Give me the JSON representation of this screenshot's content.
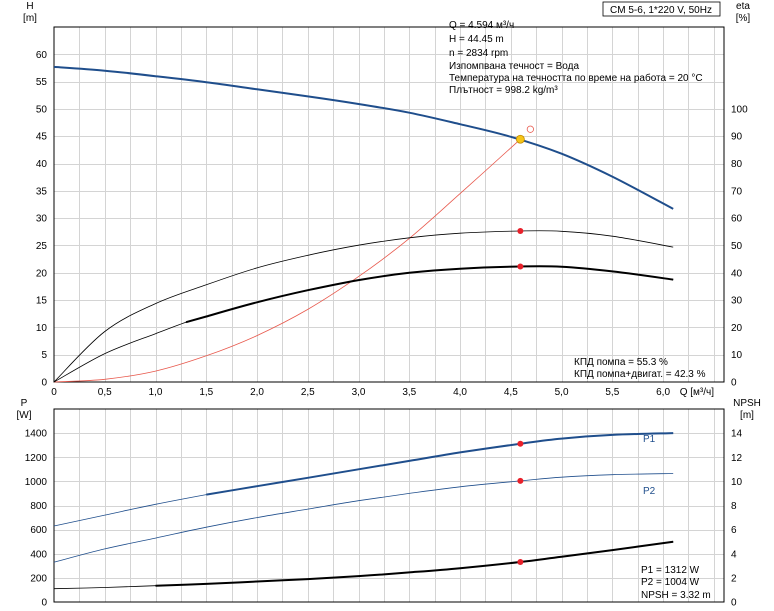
{
  "chart_data": [
    {
      "type": "line",
      "title": "CM 5-6, 1*220 V, 50Hz",
      "xlabel": "Q [м³/ч]",
      "ylabel_left": "H [m]",
      "ylabel_left_parts": [
        "H",
        "[m]"
      ],
      "ylabel_right": "eta [%]",
      "ylabel_right_parts": [
        "eta",
        "[%]"
      ],
      "xlim": [
        0,
        6.6
      ],
      "ylim_left": [
        0,
        65
      ],
      "ylim_right": [
        0,
        130
      ],
      "x_ticks": [
        "0",
        "0,5",
        "1,0",
        "1,5",
        "2,0",
        "2,5",
        "3,0",
        "3,5",
        "4,0",
        "4,5",
        "5,0",
        "5,5",
        "6,0"
      ],
      "x_tick_values": [
        0,
        0.5,
        1.0,
        1.5,
        2.0,
        2.5,
        3.0,
        3.5,
        4.0,
        4.5,
        5.0,
        5.5,
        6.0
      ],
      "y_left_ticks": [
        0,
        5,
        10,
        15,
        20,
        25,
        30,
        35,
        40,
        45,
        50,
        55,
        60
      ],
      "y_right_ticks": [
        0,
        10,
        20,
        30,
        40,
        50,
        60,
        70,
        80,
        90,
        100
      ],
      "grid": true,
      "info_lines": [
        "Q = 4.594 м³/ч",
        "H = 44.45 m",
        "n = 2834 rpm",
        "Изпомпвана течност = Вода",
        "Температура на течността по време на работа = 20 °C",
        "Плътност = 998.2 kg/m³"
      ],
      "efficiency_labels": [
        "КПД помпа = 55.3 %",
        "КПД помпа+двигат. = 42.3 %"
      ],
      "colors": {
        "head": "#1f4e8c",
        "system": "#e8584c",
        "duty_point": "#f5c518",
        "marker": "#e8202a",
        "efficiency": "#000000"
      },
      "series": [
        {
          "axis": "left",
          "x": [
            0,
            0.5,
            1.0,
            1.5,
            2.0,
            2.5,
            3.0,
            3.5,
            4.0,
            4.5,
            5.0,
            5.5,
            6.1
          ],
          "values": [
            57.7,
            57.0,
            56.0,
            54.9,
            53.6,
            52.3,
            50.9,
            49.3,
            47.2,
            44.9,
            41.8,
            37.6,
            31.7
          ]
        },
        {
          "axis": "left",
          "x": [
            0,
            0.5,
            1.0,
            1.5,
            2.0,
            2.5,
            3.0,
            3.5,
            4.0,
            4.594
          ],
          "values": [
            0,
            0.5,
            2.0,
            4.8,
            8.5,
            13.3,
            19.3,
            26.3,
            34.5,
            44.45
          ]
        },
        {
          "axis": "right",
          "x": [
            0,
            0.5,
            1.0,
            1.5,
            2.0,
            2.5,
            3.0,
            3.5,
            4.0,
            4.594,
            5.0,
            5.5,
            6.1
          ],
          "values": [
            0,
            18.5,
            28.7,
            35.6,
            41.8,
            46.4,
            50.1,
            52.8,
            54.5,
            55.3,
            55.2,
            53.4,
            49.4
          ]
        },
        {
          "axis": "right",
          "x": [
            0,
            0.5,
            1.0,
            1.3,
            1.5,
            2.0,
            2.5,
            3.0,
            3.5,
            4.0,
            4.594,
            5.0,
            5.5,
            6.1
          ],
          "values": [
            0,
            10.4,
            17.7,
            21.9,
            24.0,
            29.2,
            33.6,
            37.3,
            40.0,
            41.5,
            42.3,
            42.2,
            40.5,
            37.5
          ]
        }
      ],
      "duty_point": {
        "x": 4.594,
        "y": 44.45
      },
      "markers": [
        {
          "axis": "right",
          "x": 4.594,
          "y": 55.3
        },
        {
          "axis": "right",
          "x": 4.594,
          "y": 42.3
        }
      ]
    },
    {
      "type": "line",
      "xlabel": "",
      "ylabel_left": "P [W]",
      "ylabel_left_parts": [
        "P",
        "[W]"
      ],
      "ylabel_right": "NPSH [m]",
      "ylabel_right_parts": [
        "NPSH",
        "[m]"
      ],
      "xlim": [
        0,
        6.6
      ],
      "ylim_left": [
        0,
        1600
      ],
      "ylim_right": [
        0,
        16
      ],
      "y_left_ticks": [
        0,
        200,
        400,
        600,
        800,
        1000,
        1200,
        1400
      ],
      "y_right_ticks": [
        0,
        2,
        4,
        6,
        8,
        10,
        12,
        14
      ],
      "grid": true,
      "readout_lines": [
        "P1 = 1312 W",
        "P2 = 1004 W",
        "NPSH = 3.32 m"
      ],
      "colors": {
        "power": "#1f4e8c",
        "npsh": "#000000",
        "marker": "#e8202a"
      },
      "series": [
        {
          "name": "P1",
          "axis": "left",
          "x": [
            0,
            0.5,
            1.0,
            1.5,
            2.0,
            2.5,
            3.0,
            3.5,
            4.0,
            4.594,
            5.0,
            5.5,
            6.1
          ],
          "values": [
            630,
            720,
            810,
            890,
            960,
            1030,
            1100,
            1170,
            1240,
            1312,
            1355,
            1385,
            1400
          ]
        },
        {
          "name": "P2",
          "axis": "left",
          "x": [
            0,
            0.5,
            1.0,
            1.5,
            2.0,
            2.5,
            3.0,
            3.5,
            4.0,
            4.594,
            5.0,
            5.5,
            6.1
          ],
          "values": [
            330,
            440,
            530,
            620,
            700,
            770,
            840,
            900,
            955,
            1004,
            1035,
            1055,
            1065
          ]
        },
        {
          "axis": "right",
          "x": [
            0,
            0.5,
            1.0,
            1.5,
            2.0,
            2.5,
            3.0,
            3.5,
            4.0,
            4.594,
            5.0,
            5.5,
            6.1
          ],
          "values": [
            1.1,
            1.2,
            1.35,
            1.5,
            1.7,
            1.9,
            2.15,
            2.45,
            2.8,
            3.32,
            3.75,
            4.3,
            5.0
          ]
        }
      ],
      "markers": [
        {
          "axis": "left",
          "x": 4.594,
          "y": 1312
        },
        {
          "axis": "left",
          "x": 4.594,
          "y": 1004
        },
        {
          "axis": "right",
          "x": 4.594,
          "y": 3.32
        }
      ]
    }
  ]
}
